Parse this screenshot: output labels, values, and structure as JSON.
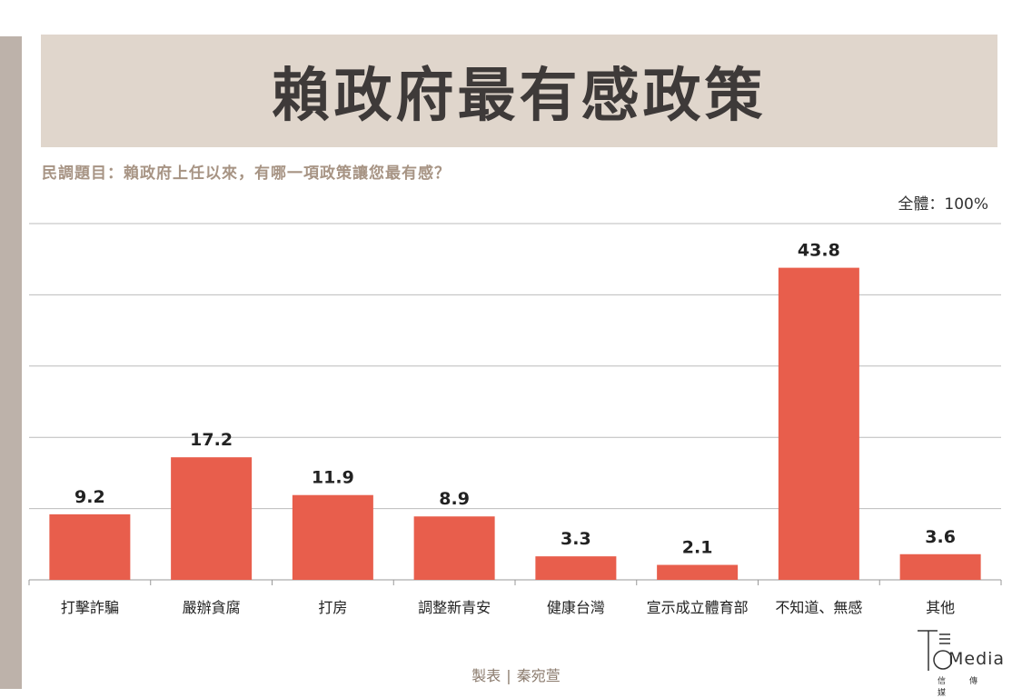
{
  "title": "賴政府最有感政策",
  "question": "民調題目：賴政府上任以來，有哪一項政策讓您最有感？",
  "total_label": "全體：100%",
  "footer": {
    "prefix": "製表",
    "separator": "|",
    "author": "秦宛萱"
  },
  "logo": {
    "word": "Media",
    "chinese": "信傳媒"
  },
  "colors": {
    "bar": "#e85e4c",
    "banner": "#e0d6cc",
    "question": "#a79484",
    "grid": "#bbbbbb"
  },
  "chart_data": {
    "type": "bar",
    "categories": [
      "打擊詐騙",
      "嚴辦貪腐",
      "打房",
      "調整新青安",
      "健康台灣",
      "宣示成立體育部",
      "不知道、無感",
      "其他"
    ],
    "values": [
      9.2,
      17.2,
      11.9,
      8.9,
      3.3,
      2.1,
      43.8,
      3.6
    ],
    "value_labels": [
      "9.2",
      "17.2",
      "11.9",
      "8.9",
      "3.3",
      "2.1",
      "43.8",
      "3.6"
    ],
    "ylim": [
      0,
      50
    ],
    "grid": true,
    "xlabel": "",
    "ylabel": ""
  }
}
